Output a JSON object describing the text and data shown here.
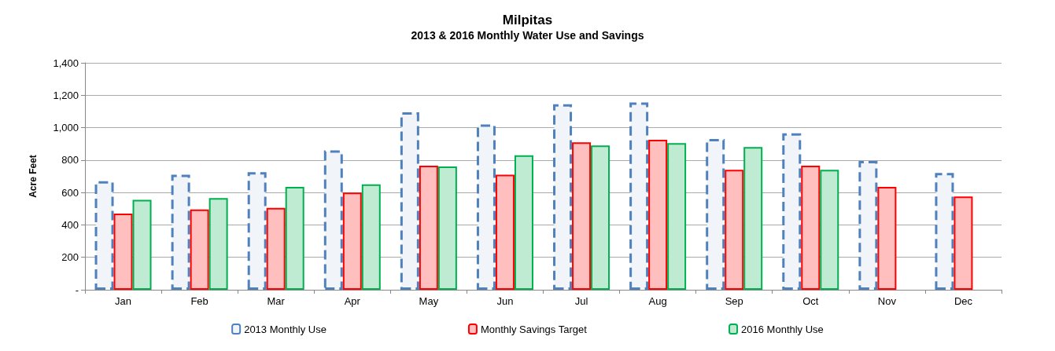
{
  "chart_data": {
    "type": "bar",
    "title": "Milpitas",
    "subtitle": "2013 & 2016 Monthly Water Use and Savings",
    "ylabel": "Acre Feet",
    "categories": [
      "Jan",
      "Feb",
      "Mar",
      "Apr",
      "May",
      "Jun",
      "Jul",
      "Aug",
      "Sep",
      "Oct",
      "Nov",
      "Dec"
    ],
    "series": [
      {
        "name": "2013 Monthly Use",
        "color": "#4f81bd",
        "line_style": "dashed",
        "values": [
          670,
          710,
          725,
          860,
          1095,
          1020,
          1145,
          1155,
          930,
          965,
          795,
          720
        ]
      },
      {
        "name": "Monthly Savings Target",
        "color": "#ff0000",
        "values": [
          470,
          495,
          505,
          600,
          765,
          710,
          910,
          925,
          740,
          765,
          635,
          575
        ]
      },
      {
        "name": "2016 Monthly Use",
        "color": "#00b050",
        "values": [
          555,
          565,
          635,
          650,
          760,
          830,
          890,
          905,
          880,
          740,
          null,
          null
        ]
      }
    ],
    "ylim": [
      0,
      1400
    ],
    "yticks": [
      {
        "value": 0,
        "label": "-"
      },
      {
        "value": 200,
        "label": "200"
      },
      {
        "value": 400,
        "label": "400"
      },
      {
        "value": 600,
        "label": "600"
      },
      {
        "value": 800,
        "label": "800"
      },
      {
        "value": 1000,
        "label": "1,000"
      },
      {
        "value": 1200,
        "label": "1,200"
      },
      {
        "value": 1400,
        "label": "1,400"
      }
    ],
    "grid": "y",
    "legend": "bottom"
  }
}
